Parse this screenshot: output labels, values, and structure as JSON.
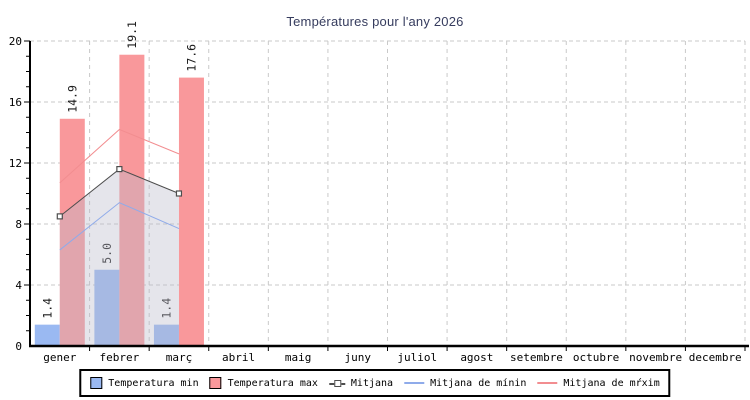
{
  "colors": {
    "title": "#363c5e",
    "bar_min": "#9ab9f2",
    "bar_max": "#f9989b",
    "line_mitjana": "#4d4d4d",
    "line_min": "#8fabea",
    "line_max": "#f28d90",
    "grid": "#c9c9c9",
    "axis": "#000000",
    "area_fill": "rgba(186,186,202,0.38)",
    "tick_label": "#000000",
    "bar_value_label": "#1a1a1a"
  },
  "chart_data": {
    "type": "bar",
    "title": "Températures pour l'any 2026",
    "categories": [
      "gener",
      "febrer",
      "març",
      "abril",
      "maig",
      "juny",
      "juliol",
      "agost",
      "setembre",
      "octubre",
      "novembre",
      "decembre"
    ],
    "ylim": [
      0,
      20
    ],
    "yticks": [
      0,
      4,
      8,
      12,
      16,
      20
    ],
    "minor_tick_step": 1,
    "grid": true,
    "legend_position": "bottom",
    "series": [
      {
        "name": "Temperatura min",
        "type": "bar",
        "color_key": "bar_min",
        "values": [
          1.4,
          5.0,
          1.4
        ]
      },
      {
        "name": "Temperatura max",
        "type": "bar",
        "color_key": "bar_max",
        "values": [
          14.9,
          19.1,
          17.6
        ]
      },
      {
        "name": "Mitjana",
        "type": "line",
        "marker": "open-square",
        "color_key": "line_mitjana",
        "values": [
          8.5,
          11.6,
          10.0
        ]
      },
      {
        "name": "Mitjana de mínin",
        "type": "line",
        "color_key": "line_min",
        "values": [
          6.3,
          9.4,
          7.7
        ]
      },
      {
        "name": "Mitjana de mŕxim",
        "type": "line",
        "color_key": "line_max",
        "values": [
          10.7,
          14.2,
          12.6
        ]
      }
    ],
    "area_under_mitjana": true,
    "bar_value_labels": {
      "rotated_degrees": -90,
      "format": "one_decimal"
    }
  },
  "legend": {
    "items": [
      {
        "label": "Temperatura min",
        "swatch": "box-min"
      },
      {
        "label": "Temperatura max",
        "swatch": "box-max"
      },
      {
        "label": "Mitjana",
        "swatch": "line-marker"
      },
      {
        "label": "Mitjana de mínin",
        "swatch": "line-min"
      },
      {
        "label": "Mitjana de mŕxim",
        "swatch": "line-max"
      }
    ]
  }
}
